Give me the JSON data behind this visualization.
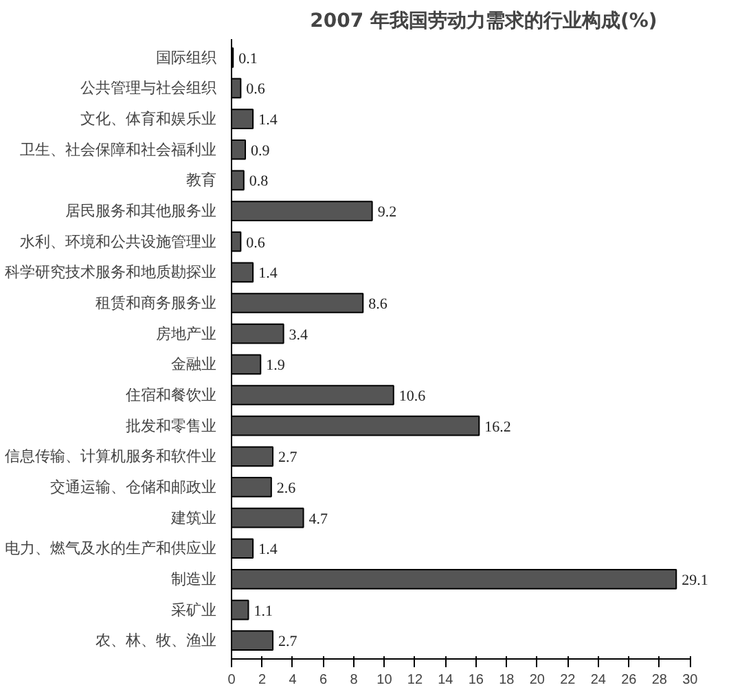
{
  "chart_data": {
    "type": "bar",
    "orientation": "horizontal",
    "title": "2007 年我国劳动力需求的行业构成(%)",
    "categories": [
      "国际组织",
      "公共管理与社会组织",
      "文化、体育和娱乐业",
      "卫生、社会保障和社会福利业",
      "教育",
      "居民服务和其他服务业",
      "水利、环境和公共设施管理业",
      "科学研究技术服务和地质勘探业",
      "租赁和商务服务业",
      "房地产业",
      "金融业",
      "住宿和餐饮业",
      "批发和零售业",
      "信息传输、计算机服务和软件业",
      "交通运输、仓储和邮政业",
      "建筑业",
      "电力、燃气及水的生产和供应业",
      "制造业",
      "采矿业",
      "农、林、牧、渔业"
    ],
    "values": [
      0.1,
      0.6,
      1.4,
      0.9,
      0.8,
      9.2,
      0.6,
      1.4,
      8.6,
      3.4,
      1.9,
      10.6,
      16.2,
      2.7,
      2.6,
      4.7,
      1.4,
      29.1,
      1.1,
      2.7
    ],
    "color": "#555555",
    "xlim": [
      0,
      30
    ],
    "xticks": [
      0,
      2,
      4,
      6,
      8,
      10,
      12,
      14,
      16,
      18,
      20,
      22,
      24,
      26,
      28,
      30
    ],
    "data_labels": true,
    "grid": false
  }
}
